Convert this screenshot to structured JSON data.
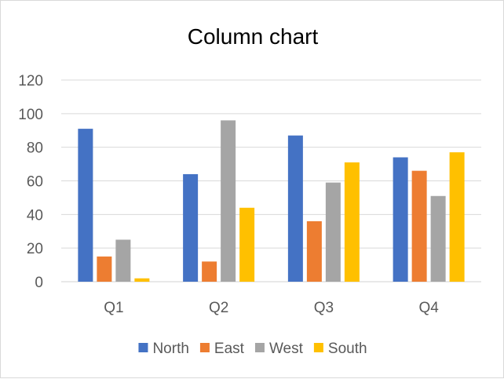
{
  "chart_data": {
    "type": "bar",
    "title": "Column chart",
    "categories": [
      "Q1",
      "Q2",
      "Q3",
      "Q4"
    ],
    "series": [
      {
        "name": "North",
        "color": "#4472C4",
        "values": [
          91,
          64,
          87,
          74
        ]
      },
      {
        "name": "East",
        "color": "#ED7D31",
        "values": [
          15,
          12,
          36,
          66
        ]
      },
      {
        "name": "West",
        "color": "#A5A5A5",
        "values": [
          25,
          96,
          59,
          51
        ]
      },
      {
        "name": "South",
        "color": "#FFC000",
        "values": [
          2,
          44,
          71,
          77
        ]
      }
    ],
    "ylim": [
      0,
      120
    ],
    "yticks": [
      0,
      20,
      40,
      60,
      80,
      100,
      120
    ],
    "grid": true,
    "legend_position": "bottom"
  }
}
